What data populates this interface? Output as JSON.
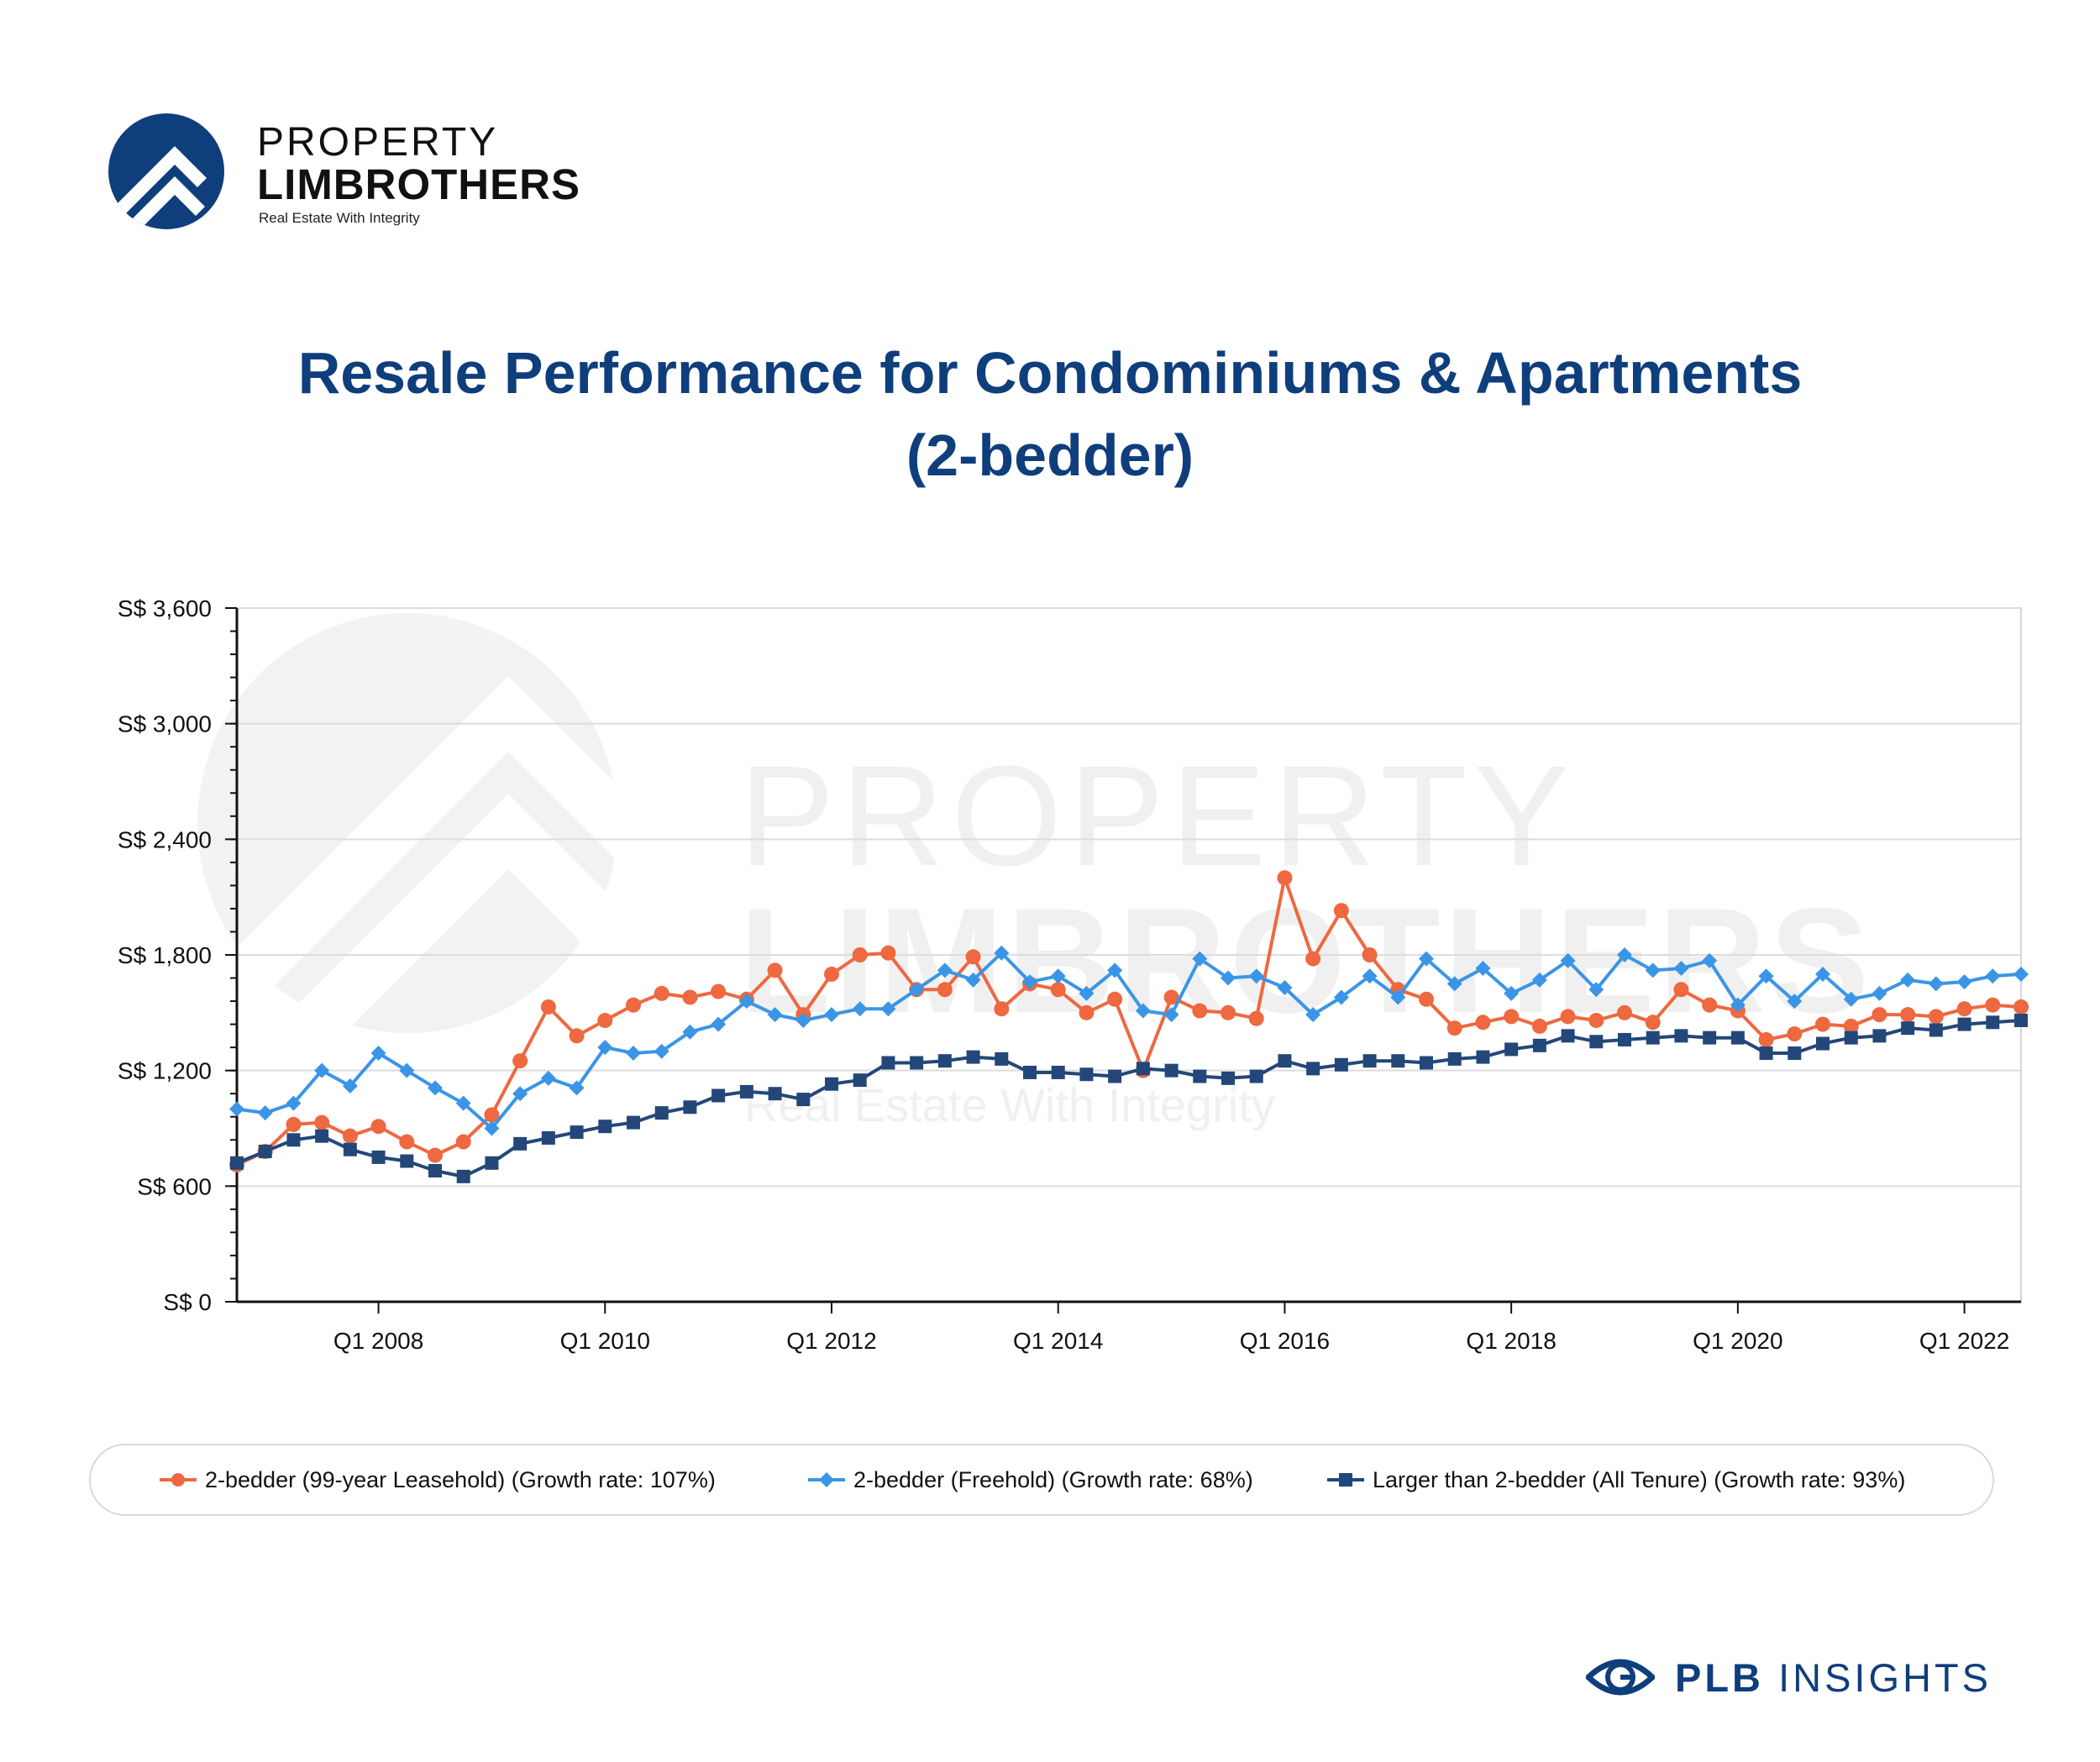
{
  "brand": {
    "line1": "PROPERTY",
    "line2": "LIMBROTHERS",
    "tagline": "Real Estate With Integrity",
    "logo_icon": "roof-chevrons-circle-icon",
    "logo_color": "#0f3e7c"
  },
  "title": {
    "line1": "Resale Performance for Condominiums & Apartments",
    "line2": "(2-bedder)"
  },
  "watermark": {
    "line1": "PROPERTY",
    "line2": "LIMBROTHERS",
    "line3": "Real Estate With Integrity"
  },
  "footer": {
    "icon": "eye-icon",
    "brand_bold": "PLB",
    "brand_rest": "INSIGHTS"
  },
  "chart_data": {
    "type": "line",
    "title": "Resale Performance for Condominiums & Apartments (2-bedder)",
    "ylim": [
      0,
      3600
    ],
    "y_ticks": [
      0,
      600,
      1200,
      1800,
      2400,
      3000,
      3600
    ],
    "y_tick_labels": [
      "S$ 0",
      "S$ 600",
      "S$ 1,200",
      "S$ 1,800",
      "S$ 2,400",
      "S$ 3,000",
      "S$ 3,600"
    ],
    "x_range": [
      "Q4 2006",
      "Q3 2022"
    ],
    "x_tick_labels": [
      "Q1 2008",
      "Q1 2010",
      "Q1 2012",
      "Q1 2014",
      "Q1 2016",
      "Q1 2018",
      "Q1 2020",
      "Q1 2022"
    ],
    "grid": "horizontal",
    "legend_position": "bottom",
    "x": [
      "Q4 2006",
      "Q1 2007",
      "Q2 2007",
      "Q3 2007",
      "Q4 2007",
      "Q1 2008",
      "Q2 2008",
      "Q3 2008",
      "Q4 2008",
      "Q1 2009",
      "Q2 2009",
      "Q3 2009",
      "Q4 2009",
      "Q1 2010",
      "Q2 2010",
      "Q3 2010",
      "Q4 2010",
      "Q1 2011",
      "Q2 2011",
      "Q3 2011",
      "Q4 2011",
      "Q1 2012",
      "Q2 2012",
      "Q3 2012",
      "Q4 2012",
      "Q1 2013",
      "Q2 2013",
      "Q3 2013",
      "Q4 2013",
      "Q1 2014",
      "Q2 2014",
      "Q3 2014",
      "Q4 2014",
      "Q1 2015",
      "Q2 2015",
      "Q3 2015",
      "Q4 2015",
      "Q1 2016",
      "Q2 2016",
      "Q3 2016",
      "Q4 2016",
      "Q1 2017",
      "Q2 2017",
      "Q3 2017",
      "Q4 2017",
      "Q1 2018",
      "Q2 2018",
      "Q3 2018",
      "Q4 2018",
      "Q1 2019",
      "Q2 2019",
      "Q3 2019",
      "Q4 2019",
      "Q1 2020",
      "Q2 2020",
      "Q3 2020",
      "Q4 2020",
      "Q1 2021",
      "Q2 2021",
      "Q3 2021",
      "Q4 2021",
      "Q1 2022",
      "Q2 2022",
      "Q3 2022"
    ],
    "series": [
      {
        "name": "2-bedder (99-year Leasehold) (Growth rate: 107%)",
        "color": "#ee6840",
        "marker": "circle",
        "values": [
          710,
          780,
          920,
          930,
          860,
          910,
          830,
          760,
          830,
          970,
          1250,
          1530,
          1380,
          1460,
          1540,
          1600,
          1580,
          1610,
          1570,
          1720,
          1490,
          1700,
          1800,
          1810,
          1620,
          1620,
          1790,
          1520,
          1650,
          1620,
          1500,
          1570,
          1200,
          1580,
          1510,
          1500,
          1470,
          2200,
          1780,
          2030,
          1800,
          1620,
          1570,
          1420,
          1450,
          1480,
          1430,
          1480,
          1460,
          1500,
          1450,
          1620,
          1540,
          1510,
          1360,
          1390,
          1440,
          1430,
          1490,
          1490,
          1480,
          1520,
          1540,
          1530
        ]
      },
      {
        "name": "2-bedder (Freehold) (Growth rate: 68%)",
        "color": "#3b95e6",
        "marker": "diamond",
        "values": [
          1000,
          980,
          1030,
          1200,
          1120,
          1290,
          1200,
          1110,
          1030,
          900,
          1080,
          1160,
          1110,
          1320,
          1290,
          1300,
          1400,
          1440,
          1560,
          1490,
          1460,
          1490,
          1520,
          1520,
          1620,
          1720,
          1670,
          1810,
          1660,
          1690,
          1600,
          1720,
          1510,
          1490,
          1780,
          1680,
          1690,
          1630,
          1490,
          1580,
          1690,
          1580,
          1780,
          1650,
          1730,
          1600,
          1670,
          1770,
          1620,
          1800,
          1720,
          1730,
          1770,
          1540,
          1690,
          1560,
          1700,
          1570,
          1600,
          1670,
          1650,
          1660,
          1690,
          1700
        ]
      },
      {
        "name": "Larger than 2-bedder (All Tenure) (Growth rate: 93%)",
        "color": "#24477a",
        "marker": "square",
        "values": [
          720,
          780,
          840,
          860,
          790,
          750,
          730,
          680,
          650,
          720,
          820,
          850,
          880,
          910,
          930,
          980,
          1010,
          1070,
          1090,
          1080,
          1050,
          1130,
          1150,
          1240,
          1240,
          1250,
          1270,
          1260,
          1190,
          1190,
          1180,
          1170,
          1210,
          1200,
          1170,
          1160,
          1170,
          1250,
          1210,
          1230,
          1250,
          1250,
          1240,
          1260,
          1270,
          1310,
          1330,
          1380,
          1350,
          1360,
          1370,
          1380,
          1370,
          1370,
          1290,
          1290,
          1340,
          1370,
          1380,
          1420,
          1410,
          1440,
          1450,
          1460
        ]
      }
    ]
  }
}
